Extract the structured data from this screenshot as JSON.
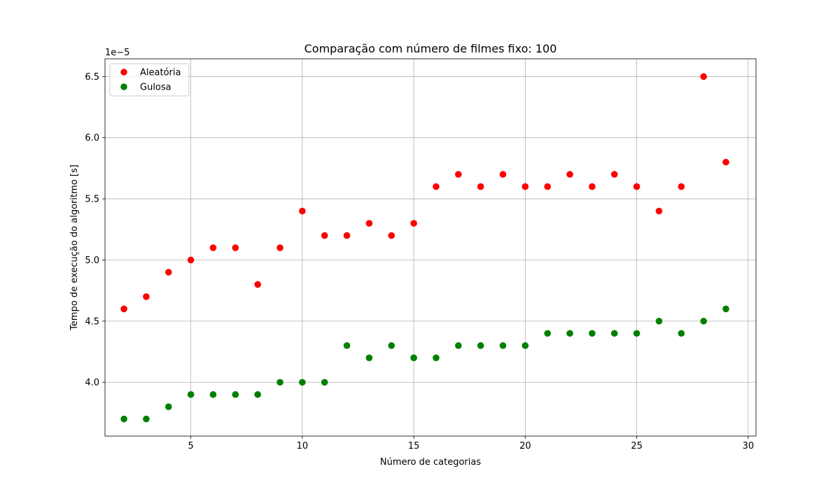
{
  "chart_data": {
    "type": "scatter",
    "title": "Comparação com número de filmes fixo: 100",
    "xlabel": "Número de categorias",
    "ylabel": "Tempo de execução do algoritmo [s]",
    "y_offset_label": "1e−5",
    "y_multiplier": 1e-05,
    "xlim": [
      1.15,
      30.35
    ],
    "ylim": [
      3.56,
      6.645
    ],
    "xticks": [
      5,
      10,
      15,
      20,
      25,
      30
    ],
    "xtick_labels": [
      "5",
      "10",
      "15",
      "20",
      "25",
      "30"
    ],
    "yticks": [
      4.0,
      4.5,
      5.0,
      5.5,
      6.0,
      6.5
    ],
    "ytick_labels": [
      "4.0",
      "4.5",
      "5.0",
      "5.5",
      "6.0",
      "6.5"
    ],
    "grid": true,
    "legend": "top-left",
    "x": [
      2,
      3,
      4,
      5,
      6,
      7,
      8,
      9,
      10,
      11,
      12,
      13,
      14,
      15,
      16,
      17,
      18,
      19,
      20,
      21,
      22,
      23,
      24,
      25,
      26,
      27,
      28,
      29
    ],
    "series": [
      {
        "name": "Aleatória",
        "color": "#ff0000",
        "values": [
          4.6,
          4.7,
          4.9,
          5.0,
          5.1,
          5.1,
          4.8,
          5.1,
          5.4,
          5.2,
          5.2,
          5.3,
          5.2,
          5.3,
          5.6,
          5.7,
          5.6,
          5.7,
          5.6,
          5.6,
          5.7,
          5.6,
          5.7,
          5.6,
          5.4,
          5.6,
          6.5,
          5.8
        ]
      },
      {
        "name": "Gulosa",
        "color": "#008000",
        "values": [
          3.7,
          3.7,
          3.8,
          3.9,
          3.9,
          3.9,
          3.9,
          4.0,
          4.0,
          4.0,
          4.3,
          4.2,
          4.3,
          4.2,
          4.2,
          4.3,
          4.3,
          4.3,
          4.3,
          4.4,
          4.4,
          4.4,
          4.4,
          4.4,
          4.5,
          4.4,
          4.5,
          4.6
        ]
      }
    ]
  }
}
